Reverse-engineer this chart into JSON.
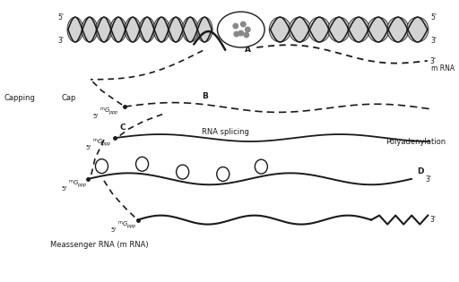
{
  "background_color": "#ffffff",
  "line_color": "#1a1a1a",
  "labels": {
    "five_prime_left": "5'",
    "three_prime_left": "3'",
    "five_prime_right": "5'",
    "three_prime_right": "3'",
    "A": "A",
    "B": "B",
    "C": "C",
    "D": "D",
    "mrna_label": "m RNA",
    "three_prime": "3'",
    "capping": "Capping",
    "cap": "Cap",
    "rna_splicing": "RNA splicing",
    "polyadenylation": "Polyadenylation",
    "messenger_rna": "Meassenger RNA (m RNA)"
  }
}
